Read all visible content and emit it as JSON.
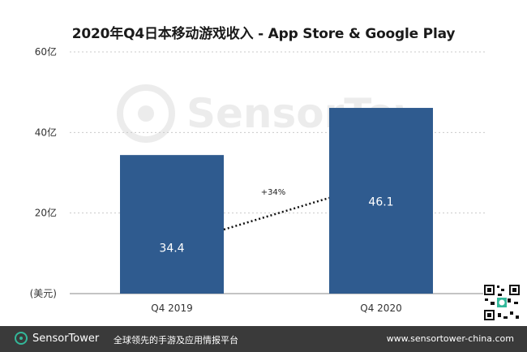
{
  "title": "2020年Q4日本移动游戏收入 - App Store & Google Play",
  "unit_label": "(美元)",
  "growth_label": "+34%",
  "watermark_text": "SensorTower",
  "footer": {
    "brand": "SensorTower",
    "tagline": "全球领先的手游及应用情报平台",
    "url": "www.sensortower-china.com"
  },
  "colors": {
    "bar": "#2f5b8f",
    "grid": "#c9c9c9",
    "footer_bg": "#3a3a3a",
    "accent": "#33b89a"
  },
  "chart_data": {
    "type": "bar",
    "title": "2020年Q4日本移动游戏收入 - App Store & Google Play",
    "categories": [
      "Q4  2019",
      "Q4 2020"
    ],
    "values": [
      34.4,
      46.1
    ],
    "value_labels": [
      "34.4",
      "46.1"
    ],
    "ylim": [
      0,
      60
    ],
    "yticks": [
      {
        "value": 0,
        "label": "(美元)"
      },
      {
        "value": 20,
        "label": "20亿"
      },
      {
        "value": 40,
        "label": "40亿"
      },
      {
        "value": 60,
        "label": "60亿"
      }
    ],
    "grid": true,
    "annotation": {
      "text": "+34%",
      "connects": [
        "Q4  2019",
        "Q4 2020"
      ]
    }
  }
}
